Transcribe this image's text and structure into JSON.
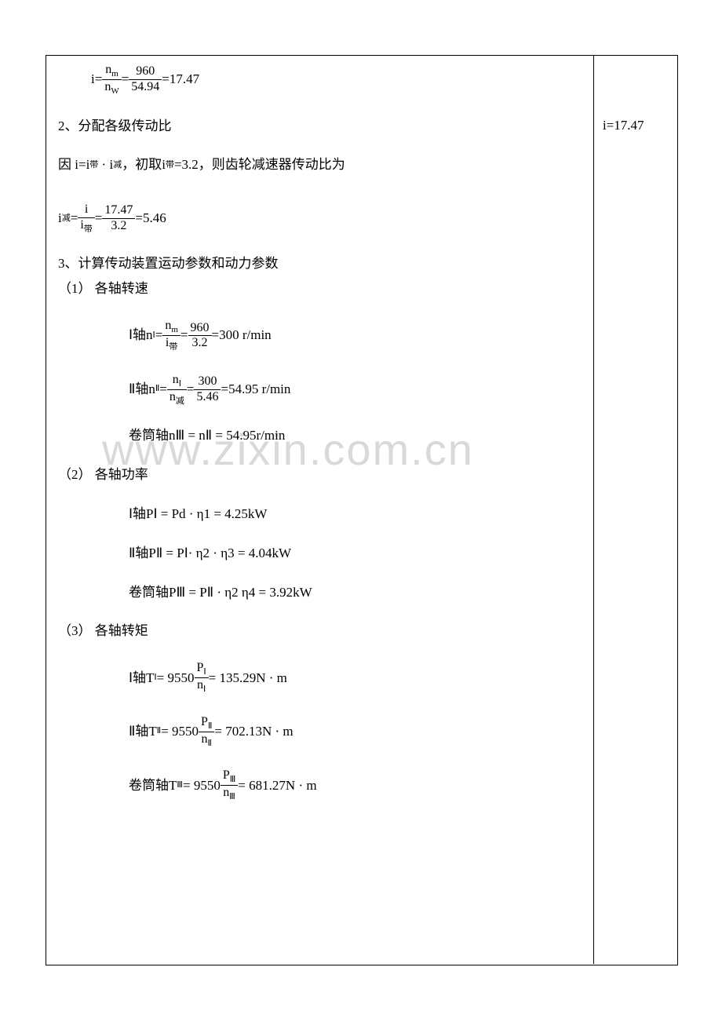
{
  "watermark": "www.zixin.com.cn",
  "side": {
    "note": "i=17.47"
  },
  "line1": {
    "pre": "i=",
    "num": "n",
    "num_sub": "m",
    "den": "n",
    "den_sub": "W",
    "eq": "=",
    "num2": "960",
    "den2": "54.94",
    "tail": "=17.47"
  },
  "h2": "2、分配各级传动比",
  "line3": {
    "a": "因 i=",
    "b": "i",
    "b_sub": "带",
    "dot": "·",
    "c": "i",
    "c_sub": "减",
    "d": "，初取",
    "e": "i",
    "e_sub": "带",
    "f": "=3.2，则齿轮减速器传动比为"
  },
  "line4": {
    "lhs1": "i",
    "lhs1_sub": "减",
    "eq1": "=",
    "num_n": "i",
    "den_n": "i",
    "den_sub": "带",
    "eq2": "=",
    "num2": "17.47",
    "den2": "3.2",
    "tail": "=5.46"
  },
  "h3": "3、计算传动装置运动参数和动力参数",
  "s1": "（1） 各轴转速",
  "axis1": {
    "label": "Ⅰ轴 ",
    "n": "n",
    "n_sub": "Ⅰ",
    "eq": "=",
    "num": "n",
    "num_sub": "m",
    "den": "i",
    "den_sub": "带",
    "eq2": "=",
    "num2": "960",
    "den2": "3.2",
    "tail": "=300 r/min"
  },
  "axis2": {
    "label": "Ⅱ轴 ",
    "n": "n",
    "n_sub": "Ⅱ",
    "eq": "=",
    "num": "n",
    "num_sub": "Ⅰ",
    "den": "n",
    "den_sub": "减",
    "eq2": "=",
    "num2": "300",
    "den2": "5.46",
    "tail": "=54.95 r/min"
  },
  "axis3": {
    "label": "卷筒轴 ",
    "expr": "nⅢ = nⅡ = 54.95",
    "unit": " r/min"
  },
  "s2": "（2） 各轴功率",
  "p1": {
    "label": "Ⅰ轴 ",
    "expr": "PⅠ = Pd · η1 = 4.25kW"
  },
  "p2": {
    "label": "Ⅱ轴 ",
    "expr": "PⅡ = PⅠ· η2 · η3 = 4.04kW"
  },
  "p3": {
    "label": "卷筒轴 ",
    "expr": "PⅢ = PⅡ · η2 η4 = 3.92kW"
  },
  "s3": "（3） 各轴转矩",
  "t1": {
    "label": "Ⅰ轴 ",
    "T": "T",
    "T_sub": "Ⅰ",
    "mid": " = 9550",
    "num": "P",
    "num_sub": "Ⅰ",
    "den": "n",
    "den_sub": "Ⅰ",
    "tail": " = 135.29N · m"
  },
  "t2": {
    "label": "Ⅱ轴 ",
    "T": "T",
    "T_sub": "Ⅱ",
    "mid": " = 9550",
    "num": "P",
    "num_sub": "Ⅱ",
    "den": "n",
    "den_sub": "Ⅱ",
    "tail": " = 702.13N · m"
  },
  "t3": {
    "label": "卷筒轴 ",
    "T": "T",
    "T_sub": "Ⅲ",
    "mid": " = 9550",
    "num": "P",
    "num_sub": "Ⅲ",
    "den": "n",
    "den_sub": "Ⅲ",
    "tail": " = 681.27N · m"
  }
}
